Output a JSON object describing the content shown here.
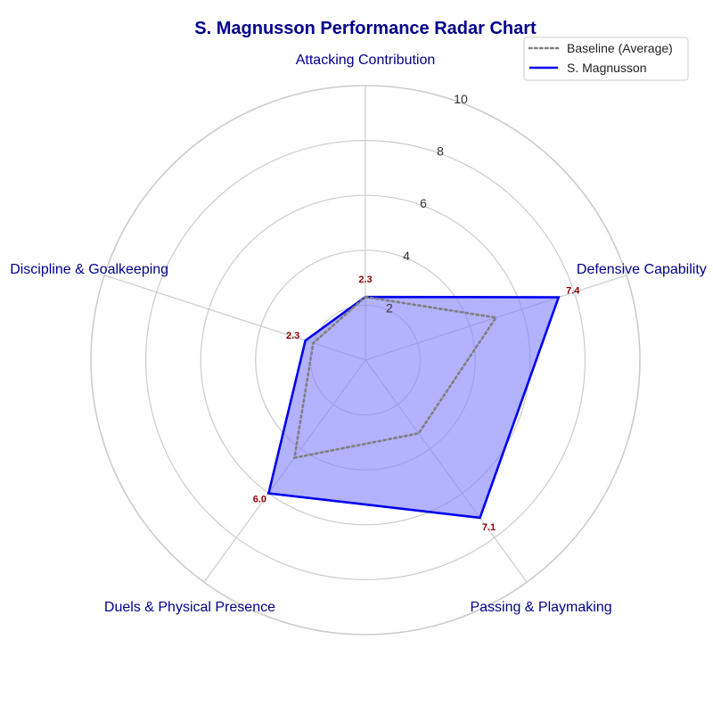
{
  "chart_data": {
    "type": "radar",
    "title": "S. Magnusson Performance Radar Chart",
    "categories": [
      "Attacking Contribution",
      "Defensive Capability",
      "Passing & Playmaking",
      "Duels & Physical Presence",
      "Discipline & Goalkeeping"
    ],
    "rlim": [
      0,
      10
    ],
    "rticks": [
      2,
      4,
      6,
      8,
      10
    ],
    "grid": true,
    "legend_position": "top-right",
    "series": [
      {
        "name": "Baseline (Average)",
        "values": [
          2.3,
          5.0,
          3.3,
          4.4,
          2.0
        ],
        "color": "#808080",
        "style": "dotted",
        "fill": false
      },
      {
        "name": "S. Magnusson",
        "values": [
          2.3,
          7.4,
          7.1,
          6.0,
          2.3
        ],
        "color": "#0000ee",
        "style": "solid",
        "fill": true,
        "fill_color": "#7f7fff",
        "data_labels": [
          "2.3",
          "7.4",
          "7.1",
          "6.0",
          "2.3"
        ]
      }
    ]
  }
}
